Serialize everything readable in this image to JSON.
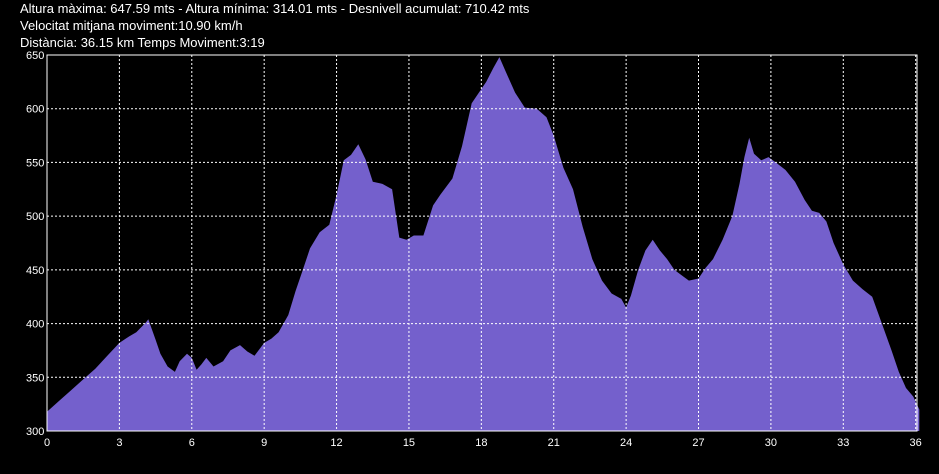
{
  "header": {
    "line1": "Altura màxima: 647.59 mts - Altura mínima: 314.01 mts - Desnivell acumulat: 710.42 mts",
    "line2": "Velocitat mitjana moviment:10.90 km/h",
    "line3": "Distància: 36.15 km  Temps Moviment:3:19"
  },
  "colors": {
    "background": "#000000",
    "fill": "#7460CC",
    "grid": "#FFFFFF",
    "text": "#FFFFFF"
  },
  "chart_data": {
    "type": "area",
    "title": "",
    "xlabel": "",
    "ylabel": "",
    "xlim": [
      0,
      36.15
    ],
    "ylim": [
      300,
      650
    ],
    "xticks": [
      0,
      3,
      6,
      9,
      12,
      15,
      18,
      21,
      24,
      27,
      30,
      33,
      36
    ],
    "yticks": [
      300,
      350,
      400,
      450,
      500,
      550,
      600,
      650
    ],
    "grid": true,
    "series": [
      {
        "name": "",
        "x": [
          0,
          0.5,
          1,
          1.5,
          2,
          2.5,
          3,
          3.4,
          3.7,
          4.1,
          4.2,
          4.5,
          4.7,
          5.0,
          5.3,
          5.5,
          5.8,
          6.0,
          6.2,
          6.4,
          6.6,
          6.9,
          7.3,
          7.6,
          8.0,
          8.3,
          8.6,
          8.8,
          9.0,
          9.3,
          9.6,
          10.0,
          10.3,
          10.6,
          10.9,
          11.3,
          11.7,
          12.0,
          12.3,
          12.6,
          12.9,
          13.2,
          13.5,
          13.9,
          14.3,
          14.6,
          14.9,
          15.2,
          15.6,
          16.0,
          16.3,
          16.8,
          17.2,
          17.6,
          17.9,
          18.2,
          18.5,
          18.75,
          19.0,
          19.4,
          19.8,
          20.3,
          20.7,
          21.0,
          21.4,
          21.8,
          22.2,
          22.6,
          23.0,
          23.4,
          23.8,
          24.0,
          24.2,
          24.5,
          24.8,
          25.1,
          25.4,
          25.7,
          26.0,
          26.3,
          26.6,
          27.0,
          27.3,
          27.6,
          28.0,
          28.4,
          28.7,
          28.9,
          29.1,
          29.3,
          29.6,
          29.9,
          30.2,
          30.6,
          31.0,
          31.4,
          31.7,
          32.0,
          32.3,
          32.6,
          33.0,
          33.4,
          33.8,
          34.2,
          34.6,
          35.0,
          35.3,
          35.6,
          35.9,
          36.15
        ],
        "y": [
          318,
          328,
          338,
          348,
          358,
          370,
          382,
          388,
          392,
          401,
          404,
          385,
          372,
          360,
          355,
          365,
          372,
          368,
          357,
          362,
          368,
          360,
          365,
          375,
          380,
          374,
          370,
          376,
          382,
          386,
          392,
          408,
          430,
          450,
          470,
          485,
          492,
          520,
          552,
          557,
          567,
          553,
          532,
          530,
          525,
          480,
          478,
          482,
          482,
          510,
          520,
          535,
          565,
          605,
          615,
          625,
          638,
          648,
          635,
          615,
          601,
          600,
          592,
          575,
          545,
          525,
          490,
          460,
          440,
          428,
          423,
          415,
          426,
          450,
          468,
          478,
          468,
          460,
          450,
          445,
          440,
          442,
          452,
          460,
          478,
          500,
          530,
          555,
          573,
          558,
          552,
          555,
          550,
          543,
          532,
          515,
          505,
          503,
          495,
          475,
          455,
          440,
          432,
          425,
          400,
          375,
          355,
          340,
          332,
          320
        ]
      }
    ]
  }
}
